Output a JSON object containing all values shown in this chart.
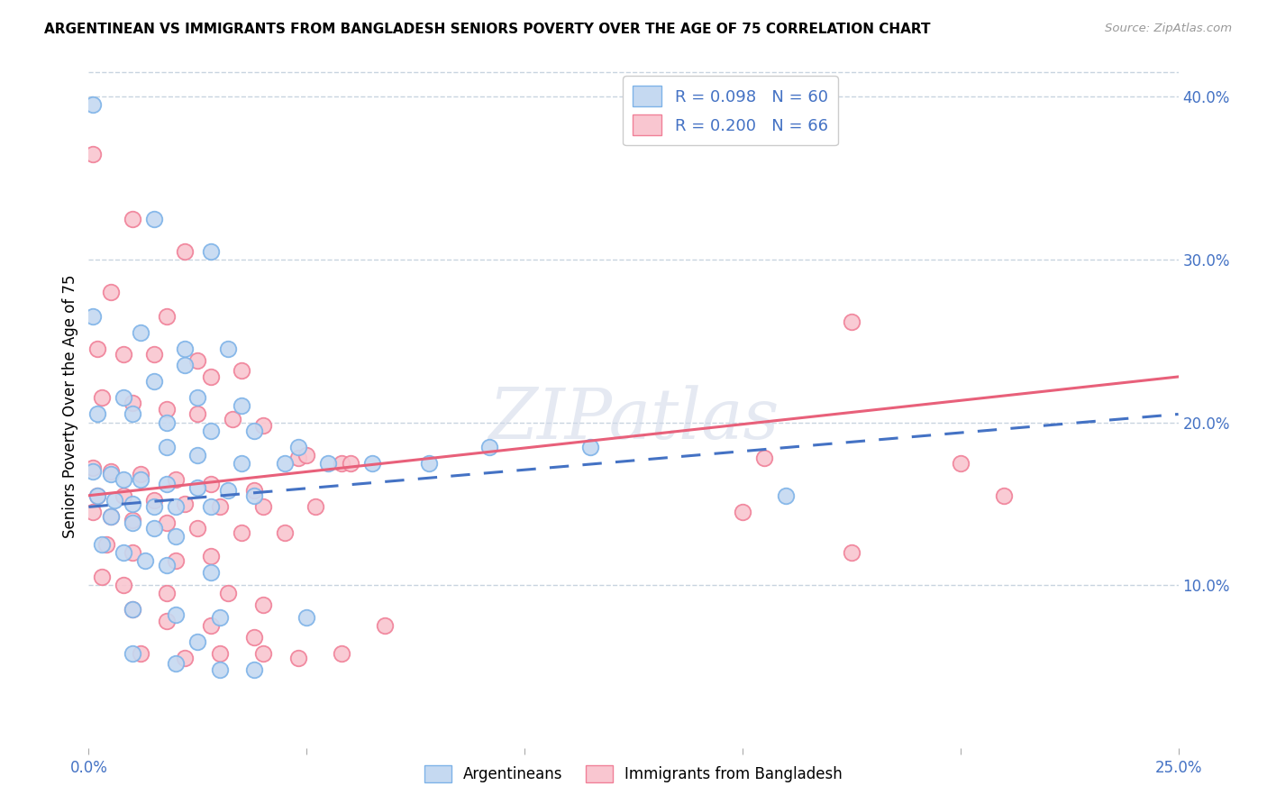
{
  "title": "ARGENTINEAN VS IMMIGRANTS FROM BANGLADESH SENIORS POVERTY OVER THE AGE OF 75 CORRELATION CHART",
  "source": "Source: ZipAtlas.com",
  "ylabel": "Seniors Poverty Over the Age of 75",
  "xlim": [
    0.0,
    0.25
  ],
  "ylim": [
    0.0,
    0.42
  ],
  "blue_color": "#7eb3e8",
  "pink_color": "#f08098",
  "blue_fill": "#c5d9f1",
  "pink_fill": "#f9c6d0",
  "trend_blue_color": "#4472c4",
  "trend_pink_color": "#e8607a",
  "watermark": "ZIPatlas",
  "watermark_color": "#d0d8e8",
  "background_color": "#ffffff",
  "grid_color": "#c8d4e0",
  "blue_scatter": [
    [
      0.001,
      0.395
    ],
    [
      0.015,
      0.325
    ],
    [
      0.028,
      0.305
    ],
    [
      0.001,
      0.265
    ],
    [
      0.012,
      0.255
    ],
    [
      0.022,
      0.245
    ],
    [
      0.032,
      0.245
    ],
    [
      0.022,
      0.235
    ],
    [
      0.015,
      0.225
    ],
    [
      0.025,
      0.215
    ],
    [
      0.008,
      0.215
    ],
    [
      0.035,
      0.21
    ],
    [
      0.002,
      0.205
    ],
    [
      0.01,
      0.205
    ],
    [
      0.018,
      0.2
    ],
    [
      0.028,
      0.195
    ],
    [
      0.038,
      0.195
    ],
    [
      0.048,
      0.185
    ],
    [
      0.018,
      0.185
    ],
    [
      0.025,
      0.18
    ],
    [
      0.035,
      0.175
    ],
    [
      0.045,
      0.175
    ],
    [
      0.055,
      0.175
    ],
    [
      0.065,
      0.175
    ],
    [
      0.078,
      0.175
    ],
    [
      0.092,
      0.185
    ],
    [
      0.115,
      0.185
    ],
    [
      0.001,
      0.17
    ],
    [
      0.005,
      0.168
    ],
    [
      0.008,
      0.165
    ],
    [
      0.012,
      0.165
    ],
    [
      0.018,
      0.162
    ],
    [
      0.025,
      0.16
    ],
    [
      0.032,
      0.158
    ],
    [
      0.038,
      0.155
    ],
    [
      0.002,
      0.155
    ],
    [
      0.006,
      0.152
    ],
    [
      0.01,
      0.15
    ],
    [
      0.015,
      0.148
    ],
    [
      0.02,
      0.148
    ],
    [
      0.028,
      0.148
    ],
    [
      0.005,
      0.142
    ],
    [
      0.01,
      0.138
    ],
    [
      0.015,
      0.135
    ],
    [
      0.02,
      0.13
    ],
    [
      0.003,
      0.125
    ],
    [
      0.008,
      0.12
    ],
    [
      0.013,
      0.115
    ],
    [
      0.018,
      0.112
    ],
    [
      0.028,
      0.108
    ],
    [
      0.01,
      0.085
    ],
    [
      0.02,
      0.082
    ],
    [
      0.03,
      0.08
    ],
    [
      0.05,
      0.08
    ],
    [
      0.025,
      0.065
    ],
    [
      0.01,
      0.058
    ],
    [
      0.02,
      0.052
    ],
    [
      0.03,
      0.048
    ],
    [
      0.038,
      0.048
    ],
    [
      0.16,
      0.155
    ]
  ],
  "pink_scatter": [
    [
      0.001,
      0.365
    ],
    [
      0.01,
      0.325
    ],
    [
      0.022,
      0.305
    ],
    [
      0.005,
      0.28
    ],
    [
      0.018,
      0.265
    ],
    [
      0.002,
      0.245
    ],
    [
      0.008,
      0.242
    ],
    [
      0.015,
      0.242
    ],
    [
      0.025,
      0.238
    ],
    [
      0.035,
      0.232
    ],
    [
      0.028,
      0.228
    ],
    [
      0.003,
      0.215
    ],
    [
      0.01,
      0.212
    ],
    [
      0.018,
      0.208
    ],
    [
      0.025,
      0.205
    ],
    [
      0.033,
      0.202
    ],
    [
      0.04,
      0.198
    ],
    [
      0.048,
      0.178
    ],
    [
      0.058,
      0.175
    ],
    [
      0.001,
      0.172
    ],
    [
      0.005,
      0.17
    ],
    [
      0.012,
      0.168
    ],
    [
      0.02,
      0.165
    ],
    [
      0.028,
      0.162
    ],
    [
      0.038,
      0.158
    ],
    [
      0.002,
      0.155
    ],
    [
      0.008,
      0.155
    ],
    [
      0.015,
      0.152
    ],
    [
      0.022,
      0.15
    ],
    [
      0.03,
      0.148
    ],
    [
      0.04,
      0.148
    ],
    [
      0.001,
      0.145
    ],
    [
      0.005,
      0.142
    ],
    [
      0.01,
      0.14
    ],
    [
      0.018,
      0.138
    ],
    [
      0.025,
      0.135
    ],
    [
      0.035,
      0.132
    ],
    [
      0.004,
      0.125
    ],
    [
      0.01,
      0.12
    ],
    [
      0.02,
      0.115
    ],
    [
      0.028,
      0.118
    ],
    [
      0.003,
      0.105
    ],
    [
      0.008,
      0.1
    ],
    [
      0.018,
      0.095
    ],
    [
      0.01,
      0.085
    ],
    [
      0.018,
      0.078
    ],
    [
      0.012,
      0.058
    ],
    [
      0.022,
      0.055
    ],
    [
      0.03,
      0.058
    ],
    [
      0.04,
      0.058
    ],
    [
      0.048,
      0.055
    ],
    [
      0.058,
      0.058
    ],
    [
      0.175,
      0.262
    ],
    [
      0.2,
      0.175
    ],
    [
      0.21,
      0.155
    ],
    [
      0.15,
      0.145
    ],
    [
      0.175,
      0.12
    ],
    [
      0.155,
      0.178
    ],
    [
      0.032,
      0.095
    ],
    [
      0.04,
      0.088
    ],
    [
      0.068,
      0.075
    ],
    [
      0.038,
      0.068
    ],
    [
      0.028,
      0.075
    ],
    [
      0.045,
      0.132
    ],
    [
      0.052,
      0.148
    ],
    [
      0.06,
      0.175
    ],
    [
      0.05,
      0.18
    ]
  ],
  "blue_trend_x": [
    0.0,
    0.25
  ],
  "blue_trend_y": [
    0.148,
    0.205
  ],
  "pink_trend_x": [
    0.0,
    0.25
  ],
  "pink_trend_y": [
    0.155,
    0.228
  ]
}
